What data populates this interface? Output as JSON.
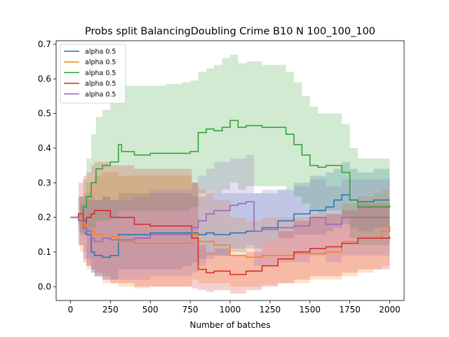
{
  "chart_data": {
    "type": "line",
    "title": "Probs split BalancingDoubling Crime B10 N 100_100_100",
    "xlabel": "Number of batches",
    "ylabel": "",
    "xlim": [
      -90,
      2090
    ],
    "ylim": [
      -0.04,
      0.71
    ],
    "xticks": [
      0,
      250,
      500,
      750,
      1000,
      1250,
      1500,
      1750,
      2000
    ],
    "yticks": [
      0.0,
      0.1,
      0.2,
      0.3,
      0.4,
      0.5,
      0.6,
      0.7
    ],
    "xtick_labels": [
      "0",
      "250",
      "500",
      "750",
      "1000",
      "1250",
      "1500",
      "1750",
      "2000"
    ],
    "ytick_labels": [
      "0.0",
      "0.1",
      "0.2",
      "0.3",
      "0.4",
      "0.5",
      "0.6",
      "0.7"
    ],
    "grid": false,
    "legend_position": "top-left",
    "series": [
      {
        "name": "alpha 0.5",
        "color": "#1f77b4",
        "x": [
          0,
          60,
          100,
          130,
          150,
          200,
          250,
          300,
          400,
          500,
          600,
          700,
          760,
          800,
          850,
          900,
          1000,
          1100,
          1200,
          1300,
          1400,
          1500,
          1600,
          1650,
          1700,
          1750,
          1800,
          1900,
          2000
        ],
        "y": [
          0.2,
          0.19,
          0.15,
          0.1,
          0.09,
          0.085,
          0.09,
          0.15,
          0.15,
          0.155,
          0.155,
          0.155,
          0.155,
          0.15,
          0.155,
          0.15,
          0.155,
          0.16,
          0.17,
          0.19,
          0.21,
          0.22,
          0.23,
          0.25,
          0.265,
          0.25,
          0.245,
          0.25,
          0.25
        ],
        "lower": [
          0.2,
          0.15,
          0.08,
          0.04,
          0.03,
          0.02,
          0.02,
          0.05,
          0.05,
          0.05,
          0.05,
          0.06,
          0.07,
          0.08,
          0.09,
          0.09,
          0.1,
          0.11,
          0.13,
          0.14,
          0.15,
          0.15,
          0.16,
          0.17,
          0.18,
          0.17,
          0.16,
          0.17,
          0.18
        ],
        "upper": [
          0.2,
          0.24,
          0.25,
          0.25,
          0.25,
          0.26,
          0.25,
          0.27,
          0.27,
          0.27,
          0.27,
          0.27,
          0.26,
          0.26,
          0.27,
          0.27,
          0.27,
          0.27,
          0.27,
          0.28,
          0.3,
          0.32,
          0.33,
          0.34,
          0.36,
          0.34,
          0.33,
          0.34,
          0.3
        ]
      },
      {
        "name": "alpha 0.5",
        "color": "#ff7f0e",
        "x": [
          0,
          60,
          100,
          150,
          200,
          250,
          300,
          400,
          500,
          600,
          700,
          760,
          800,
          900,
          1000,
          1100,
          1200,
          1300,
          1400,
          1500,
          1600,
          1700,
          1800,
          1900,
          1950,
          2000
        ],
        "y": [
          0.2,
          0.18,
          0.16,
          0.15,
          0.14,
          0.145,
          0.13,
          0.125,
          0.125,
          0.125,
          0.125,
          0.15,
          0.13,
          0.12,
          0.09,
          0.085,
          0.09,
          0.09,
          0.095,
          0.095,
          0.1,
          0.13,
          0.14,
          0.14,
          0.16,
          0.175
        ],
        "lower": [
          0.2,
          0.1,
          0.05,
          0.03,
          0.01,
          0.01,
          0.0,
          -0.005,
          0.0,
          0.0,
          0.0,
          0.02,
          0.01,
          0.01,
          0.0,
          0.0,
          0.005,
          0.01,
          0.01,
          0.02,
          0.02,
          0.03,
          0.04,
          0.05,
          0.06,
          0.07
        ],
        "upper": [
          0.2,
          0.26,
          0.3,
          0.32,
          0.33,
          0.33,
          0.32,
          0.32,
          0.32,
          0.32,
          0.32,
          0.3,
          0.28,
          0.25,
          0.2,
          0.19,
          0.2,
          0.2,
          0.2,
          0.21,
          0.21,
          0.24,
          0.26,
          0.27,
          0.28,
          0.29
        ]
      },
      {
        "name": "alpha 0.5",
        "color": "#2ca02c",
        "x": [
          0,
          50,
          80,
          100,
          130,
          160,
          200,
          250,
          300,
          320,
          400,
          500,
          600,
          700,
          750,
          800,
          850,
          900,
          950,
          1000,
          1050,
          1100,
          1200,
          1300,
          1350,
          1400,
          1450,
          1500,
          1550,
          1600,
          1700,
          1750,
          1800,
          1900,
          2000
        ],
        "y": [
          0.2,
          0.21,
          0.23,
          0.26,
          0.3,
          0.34,
          0.35,
          0.36,
          0.41,
          0.39,
          0.38,
          0.385,
          0.385,
          0.385,
          0.39,
          0.445,
          0.455,
          0.45,
          0.46,
          0.48,
          0.46,
          0.465,
          0.46,
          0.46,
          0.44,
          0.41,
          0.38,
          0.35,
          0.345,
          0.35,
          0.33,
          0.25,
          0.23,
          0.23,
          0.235
        ],
        "lower": [
          0.2,
          0.16,
          0.15,
          0.16,
          0.17,
          0.19,
          0.19,
          0.2,
          0.22,
          0.22,
          0.22,
          0.22,
          0.22,
          0.22,
          0.23,
          0.27,
          0.28,
          0.27,
          0.28,
          0.3,
          0.28,
          0.29,
          0.29,
          0.29,
          0.28,
          0.26,
          0.24,
          0.22,
          0.21,
          0.22,
          0.2,
          0.14,
          0.12,
          0.12,
          0.12
        ],
        "upper": [
          0.2,
          0.26,
          0.31,
          0.37,
          0.44,
          0.49,
          0.51,
          0.53,
          0.59,
          0.58,
          0.58,
          0.58,
          0.585,
          0.59,
          0.595,
          0.62,
          0.63,
          0.64,
          0.66,
          0.67,
          0.645,
          0.65,
          0.64,
          0.64,
          0.62,
          0.59,
          0.55,
          0.52,
          0.5,
          0.5,
          0.47,
          0.4,
          0.37,
          0.37,
          0.37
        ]
      },
      {
        "name": "alpha 0.5",
        "color": "#d62728",
        "x": [
          0,
          50,
          80,
          100,
          130,
          150,
          200,
          250,
          300,
          400,
          500,
          600,
          700,
          760,
          800,
          850,
          900,
          1000,
          1100,
          1200,
          1300,
          1400,
          1500,
          1600,
          1700,
          1800,
          1900,
          2000
        ],
        "y": [
          0.2,
          0.21,
          0.19,
          0.2,
          0.21,
          0.22,
          0.22,
          0.2,
          0.2,
          0.18,
          0.175,
          0.175,
          0.175,
          0.14,
          0.05,
          0.04,
          0.045,
          0.035,
          0.045,
          0.06,
          0.08,
          0.1,
          0.11,
          0.115,
          0.125,
          0.14,
          0.14,
          0.145
        ],
        "lower": [
          0.2,
          0.12,
          0.07,
          0.06,
          0.05,
          0.04,
          0.03,
          0.01,
          0.01,
          0.0,
          0.0,
          0.0,
          0.0,
          -0.005,
          -0.01,
          -0.015,
          -0.01,
          -0.02,
          -0.01,
          0.0,
          0.01,
          0.02,
          0.03,
          0.03,
          0.04,
          0.05,
          0.05,
          0.06
        ],
        "upper": [
          0.2,
          0.3,
          0.32,
          0.33,
          0.35,
          0.36,
          0.36,
          0.35,
          0.35,
          0.34,
          0.34,
          0.34,
          0.34,
          0.3,
          0.12,
          0.1,
          0.11,
          0.09,
          0.1,
          0.13,
          0.16,
          0.19,
          0.2,
          0.21,
          0.22,
          0.24,
          0.24,
          0.25
        ]
      },
      {
        "name": "alpha 0.5",
        "color": "#9467bd",
        "x": [
          0,
          50,
          80,
          100,
          130,
          150,
          200,
          250,
          300,
          400,
          500,
          600,
          700,
          760,
          800,
          850,
          900,
          1000,
          1050,
          1100,
          1150,
          1200,
          1300,
          1400,
          1500,
          1600,
          1700,
          1800,
          1900,
          2000
        ],
        "y": [
          0.2,
          0.19,
          0.17,
          0.16,
          0.14,
          0.13,
          0.14,
          0.135,
          0.135,
          0.14,
          0.15,
          0.15,
          0.15,
          0.17,
          0.19,
          0.21,
          0.22,
          0.235,
          0.24,
          0.245,
          0.16,
          0.165,
          0.17,
          0.175,
          0.2,
          0.18,
          0.2,
          0.2,
          0.2,
          0.2
        ],
        "lower": [
          0.2,
          0.12,
          0.08,
          0.06,
          0.04,
          0.03,
          0.02,
          0.02,
          0.02,
          0.02,
          0.03,
          0.03,
          0.03,
          0.04,
          0.06,
          0.08,
          0.09,
          0.11,
          0.11,
          0.12,
          0.06,
          0.06,
          0.07,
          0.07,
          0.09,
          0.07,
          0.09,
          0.09,
          0.09,
          0.1
        ],
        "upper": [
          0.2,
          0.26,
          0.27,
          0.27,
          0.26,
          0.25,
          0.26,
          0.25,
          0.25,
          0.26,
          0.28,
          0.28,
          0.28,
          0.3,
          0.32,
          0.34,
          0.36,
          0.37,
          0.37,
          0.38,
          0.27,
          0.28,
          0.28,
          0.29,
          0.31,
          0.29,
          0.31,
          0.31,
          0.31,
          0.31
        ]
      }
    ]
  }
}
